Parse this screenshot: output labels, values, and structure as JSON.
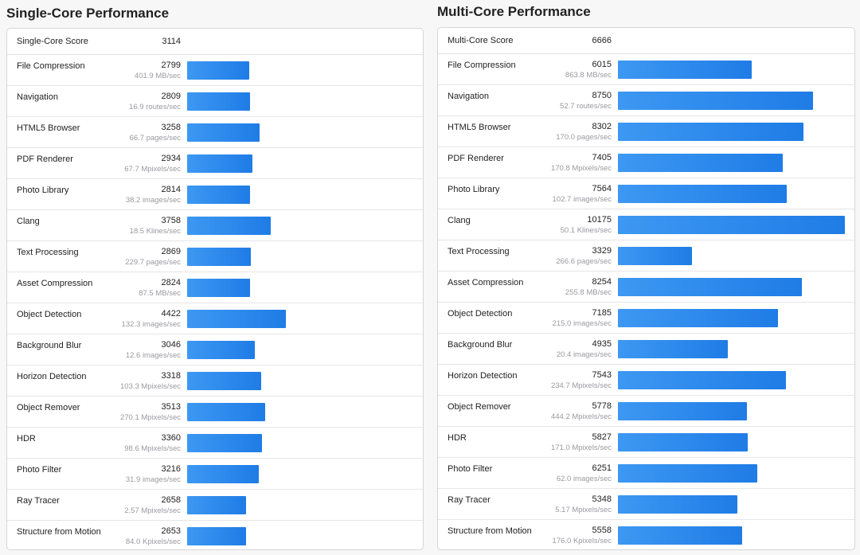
{
  "colors": {
    "bar": "#2586ea",
    "background": "#f7f7f8",
    "card": "#ffffff"
  },
  "chart_data": [
    {
      "type": "bar",
      "orientation": "horizontal",
      "title": "Single-Core Performance",
      "score_label": "Single-Core Score",
      "score": 3114,
      "xlim": [
        0,
        10175
      ],
      "categories": [
        "File Compression",
        "Navigation",
        "HTML5 Browser",
        "PDF Renderer",
        "Photo Library",
        "Clang",
        "Text Processing",
        "Asset Compression",
        "Object Detection",
        "Background Blur",
        "Horizon Detection",
        "Object Remover",
        "HDR",
        "Photo Filter",
        "Ray Tracer",
        "Structure from Motion"
      ],
      "values": [
        2799,
        2809,
        3258,
        2934,
        2814,
        3758,
        2869,
        2824,
        4422,
        3046,
        3318,
        3513,
        3360,
        3216,
        2658,
        2653
      ],
      "annotations": [
        "401.9 MB/sec",
        "16.9 routes/sec",
        "66.7 pages/sec",
        "67.7 Mpixels/sec",
        "38.2 images/sec",
        "18.5 Klines/sec",
        "229.7 pages/sec",
        "87.5 MB/sec",
        "132.3 images/sec",
        "12.6 images/sec",
        "103.3 Mpixels/sec",
        "270.1 Mpixels/sec",
        "98.6 Mpixels/sec",
        "31.9 images/sec",
        "2.57 Mpixels/sec",
        "84.0 Kpixels/sec"
      ]
    },
    {
      "type": "bar",
      "orientation": "horizontal",
      "title": "Multi-Core Performance",
      "score_label": "Multi-Core Score",
      "score": 6666,
      "xlim": [
        0,
        10175
      ],
      "categories": [
        "File Compression",
        "Navigation",
        "HTML5 Browser",
        "PDF Renderer",
        "Photo Library",
        "Clang",
        "Text Processing",
        "Asset Compression",
        "Object Detection",
        "Background Blur",
        "Horizon Detection",
        "Object Remover",
        "HDR",
        "Photo Filter",
        "Ray Tracer",
        "Structure from Motion"
      ],
      "values": [
        6015,
        8750,
        8302,
        7405,
        7564,
        10175,
        3329,
        8254,
        7185,
        4935,
        7543,
        5778,
        5827,
        6251,
        5348,
        5558
      ],
      "annotations": [
        "863.8 MB/sec",
        "52.7 routes/sec",
        "170.0 pages/sec",
        "170.8 Mpixels/sec",
        "102.7 images/sec",
        "50.1 Klines/sec",
        "266.6 pages/sec",
        "255.8 MB/sec",
        "215.0 images/sec",
        "20.4 images/sec",
        "234.7 Mpixels/sec",
        "444.2 Mpixels/sec",
        "171.0 Mpixels/sec",
        "62.0 images/sec",
        "5.17 Mpixels/sec",
        "176.0 Kpixels/sec"
      ]
    }
  ]
}
